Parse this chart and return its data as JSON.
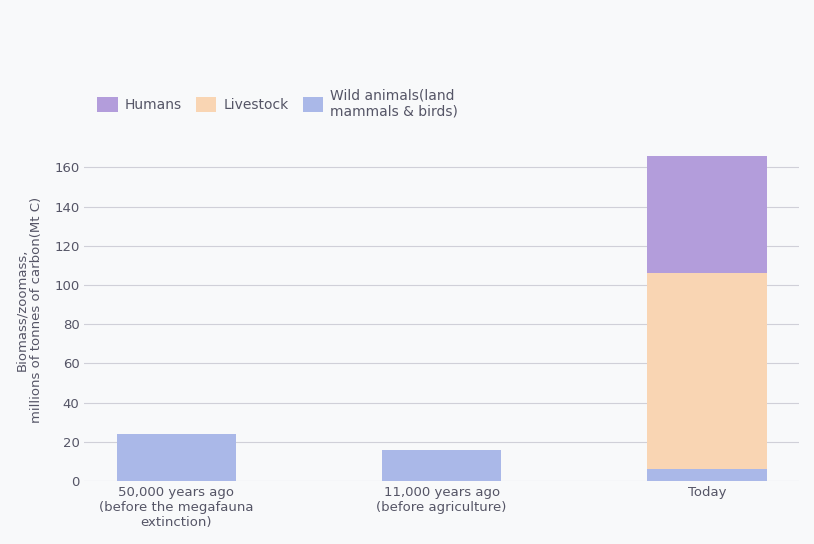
{
  "categories": [
    "50,000 years ago\n(before the megafauna\nextinction)",
    "11,000 years ago\n(before agriculture)",
    "Today"
  ],
  "wild_animals": [
    24,
    16,
    6
  ],
  "livestock": [
    0,
    0,
    100
  ],
  "humans": [
    0,
    0,
    60
  ],
  "bar_width": 0.45,
  "colors": {
    "wild_animals": "#aab8e8",
    "livestock": "#f9d5b3",
    "humans": "#b39ddb"
  },
  "ylabel_line1": "Biomass/zoomass,",
  "ylabel_line2": "millions of tonnes of carbon(Mt C)",
  "ylim": [
    0,
    175
  ],
  "yticks": [
    0,
    20,
    40,
    60,
    80,
    100,
    120,
    140,
    160
  ],
  "legend_labels": [
    "Humans",
    "Livestock",
    "Wild animals(land\nmammals & birds)"
  ],
  "legend_colors": [
    "#b39ddb",
    "#f9d5b3",
    "#aab8e8"
  ],
  "background_color": "#f8f9fa",
  "grid_color": "#d0d0d8",
  "logo_color": "#6a3aad",
  "tick_fontsize": 9.5,
  "legend_fontsize": 10
}
